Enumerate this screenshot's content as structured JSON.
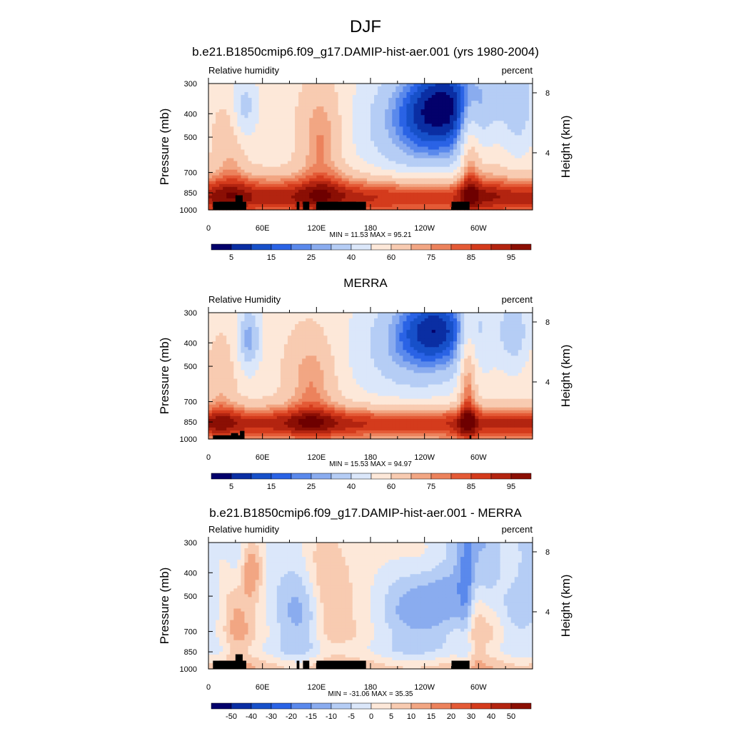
{
  "figure": {
    "title": "DJF"
  },
  "colors": {
    "abs_scale": [
      "#03006b",
      "#0a2ea3",
      "#1750c9",
      "#2a63e5",
      "#5a89ec",
      "#8aacef",
      "#b5cdf5",
      "#dbe7fa",
      "#fde8d9",
      "#f8cbb1",
      "#f2a683",
      "#ec825c",
      "#e45a36",
      "#d43b1c",
      "#b32410",
      "#8b0f04",
      "#6e0000"
    ],
    "diff_scale": [
      "#03006b",
      "#0a2ea3",
      "#1750c9",
      "#2a63e5",
      "#5a89ec",
      "#8aacef",
      "#b5cdf5",
      "#dbe7fa",
      "#fde8d9",
      "#f8cbb1",
      "#f2a683",
      "#ec825c",
      "#e45a36",
      "#d43b1c",
      "#b32410",
      "#8b0f04",
      "#6e0000"
    ]
  },
  "chart_data": [
    {
      "type": "heatmap",
      "title": "b.e21.B1850cmip6.f09_g17.DAMIP-hist-aer.001 (yrs 1980-2004)",
      "left_label": "Relative humidity",
      "right_label": "percent",
      "ylabel": "Pressure (mb)",
      "ylabel_right": "Height (km)",
      "y_ticks": [
        "300",
        "400",
        "500",
        "700",
        "850",
        "1000"
      ],
      "y_tick_values": [
        300,
        400,
        500,
        700,
        850,
        1000
      ],
      "y_right_ticks": [
        "8",
        "4"
      ],
      "y_right_values": [
        8,
        4
      ],
      "x_ticks": [
        "0",
        "60E",
        "120E",
        "180",
        "120W",
        "60W"
      ],
      "x_tick_values": [
        0,
        60,
        120,
        180,
        240,
        300
      ],
      "xlim": [
        0,
        360
      ],
      "ylim": [
        1000,
        300
      ],
      "stats": "MIN =  11.53  MAX =  95.21",
      "colorbar_labels": [
        "5",
        "15",
        "25",
        "40",
        "60",
        "75",
        "85",
        "95"
      ],
      "field": "model"
    },
    {
      "type": "heatmap",
      "title": "MERRA",
      "left_label": "Relative Humidity",
      "right_label": "percent",
      "ylabel": "Pressure (mb)",
      "ylabel_right": "Height (km)",
      "y_ticks": [
        "300",
        "400",
        "500",
        "700",
        "850",
        "1000"
      ],
      "y_tick_values": [
        300,
        400,
        500,
        700,
        850,
        1000
      ],
      "y_right_ticks": [
        "8",
        "4"
      ],
      "y_right_values": [
        8,
        4
      ],
      "x_ticks": [
        "0",
        "60E",
        "120E",
        "180",
        "120W",
        "60W"
      ],
      "x_tick_values": [
        0,
        60,
        120,
        180,
        240,
        300
      ],
      "xlim": [
        0,
        360
      ],
      "ylim": [
        1000,
        300
      ],
      "stats": "MIN =  15.53  MAX =  94.97",
      "colorbar_labels": [
        "5",
        "15",
        "25",
        "40",
        "60",
        "75",
        "85",
        "95"
      ],
      "field": "obs"
    },
    {
      "type": "heatmap",
      "title": "b.e21.B1850cmip6.f09_g17.DAMIP-hist-aer.001 - MERRA",
      "left_label": "Relative humidity",
      "right_label": "percent",
      "ylabel": "Pressure (mb)",
      "ylabel_right": "Height (km)",
      "y_ticks": [
        "300",
        "400",
        "500",
        "700",
        "850",
        "1000"
      ],
      "y_tick_values": [
        300,
        400,
        500,
        700,
        850,
        1000
      ],
      "y_right_ticks": [
        "8",
        "4"
      ],
      "y_right_values": [
        8,
        4
      ],
      "x_ticks": [
        "0",
        "60E",
        "120E",
        "180",
        "120W",
        "60W"
      ],
      "x_tick_values": [
        0,
        60,
        120,
        180,
        240,
        300
      ],
      "xlim": [
        0,
        360
      ],
      "ylim": [
        1000,
        300
      ],
      "stats": "MIN = -31.06  MAX =  35.35",
      "colorbar_labels": [
        "-50",
        "-40",
        "-30",
        "-20",
        "-15",
        "-10",
        "-5",
        "0",
        "5",
        "10",
        "15",
        "20",
        "30",
        "40",
        "50"
      ],
      "field": "diff"
    }
  ]
}
